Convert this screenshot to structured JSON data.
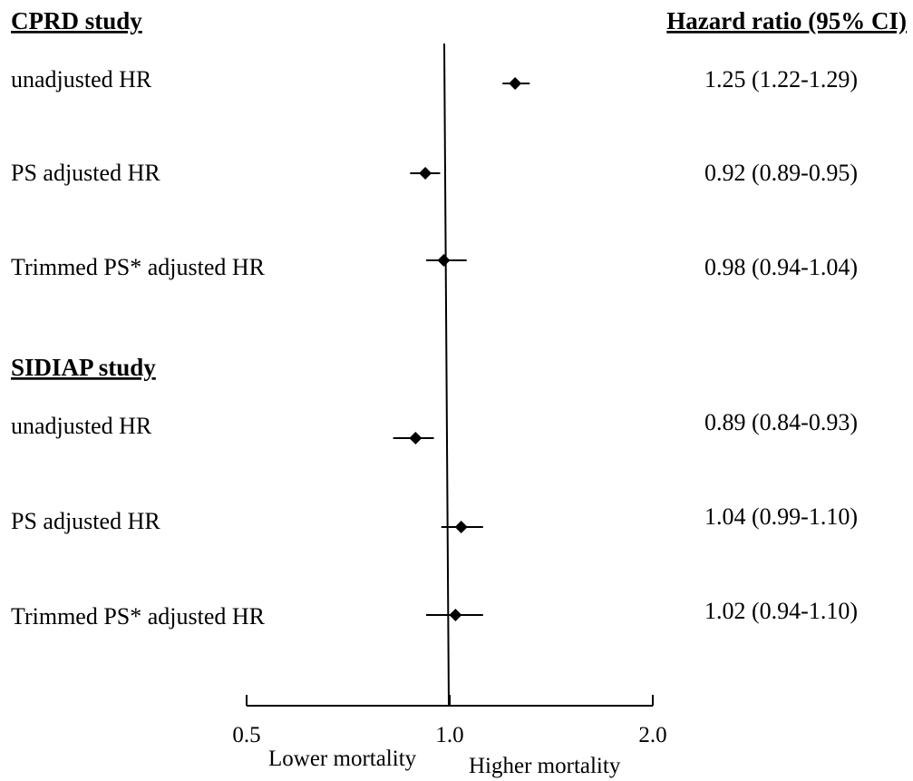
{
  "chart_data": {
    "type": "forest",
    "axis": {
      "scale": "log",
      "ticks": [
        {
          "value": 0.5,
          "label": "0.5"
        },
        {
          "value": 1.0,
          "label": "1.0"
        },
        {
          "value": 2.0,
          "label": "2.0"
        }
      ],
      "xlim": [
        0.5,
        2.0
      ],
      "reference_line": 1.0,
      "left_annotation": "Lower mortality",
      "right_annotation": "Higher mortality"
    },
    "value_column_header": "Hazard ratio (95% CI)",
    "groups": [
      {
        "title": "CPRD study",
        "rows": [
          {
            "label": "unadjusted HR",
            "hr": 1.25,
            "lo": 1.22,
            "hi": 1.29,
            "text": "1.25 (1.22-1.29)"
          },
          {
            "label": "PS adjusted HR",
            "hr": 0.92,
            "lo": 0.89,
            "hi": 0.95,
            "text": "0.92 (0.89-0.95)"
          },
          {
            "label": "Trimmed PS* adjusted HR",
            "hr": 0.98,
            "lo": 0.94,
            "hi": 1.04,
            "text": "0.98 (0.94-1.04)"
          }
        ]
      },
      {
        "title": "SIDIAP study",
        "rows": [
          {
            "label": "unadjusted HR",
            "hr": 0.89,
            "lo": 0.84,
            "hi": 0.93,
            "text": "0.89 (0.84-0.93)"
          },
          {
            "label": "PS adjusted HR",
            "hr": 1.04,
            "lo": 0.99,
            "hi": 1.1,
            "text": "1.04 (0.99-1.10)"
          },
          {
            "label": "Trimmed PS* adjusted HR",
            "hr": 1.02,
            "lo": 0.94,
            "hi": 1.1,
            "text": "1.02 (0.94-1.10)"
          }
        ]
      }
    ]
  }
}
